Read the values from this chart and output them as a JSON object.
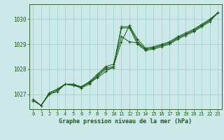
{
  "title": "Graphe pression niveau de la mer (hPa)",
  "bg_color": "#cce8e8",
  "grid_color": "#99cccc",
  "line_color": "#1a5c1a",
  "spine_color": "#336633",
  "xlim": [
    -0.5,
    23.5
  ],
  "ylim": [
    1026.4,
    1030.6
  ],
  "yticks": [
    1027,
    1028,
    1029,
    1030
  ],
  "xticks": [
    0,
    1,
    2,
    3,
    4,
    5,
    6,
    7,
    8,
    9,
    10,
    11,
    12,
    13,
    14,
    15,
    16,
    17,
    18,
    19,
    20,
    21,
    22,
    23
  ],
  "series": [
    [
      1026.8,
      1026.55,
      1027.0,
      1027.1,
      1027.4,
      1027.4,
      1027.25,
      1027.4,
      1027.7,
      1028.0,
      1028.05,
      1029.65,
      1029.65,
      1029.0,
      1028.75,
      1028.8,
      1028.9,
      1029.0,
      1029.2,
      1029.35,
      1029.5,
      1029.7,
      1029.9,
      1030.25
    ],
    [
      1026.75,
      1026.55,
      1027.0,
      1027.15,
      1027.4,
      1027.35,
      1027.3,
      1027.45,
      1027.75,
      1028.05,
      1028.1,
      1029.7,
      1029.7,
      1029.1,
      1028.8,
      1028.85,
      1028.95,
      1029.05,
      1029.25,
      1029.4,
      1029.55,
      1029.75,
      1029.95,
      1030.25
    ],
    [
      1026.75,
      1026.55,
      1027.05,
      1027.2,
      1027.4,
      1027.35,
      1027.25,
      1027.5,
      1027.65,
      1027.9,
      1028.1,
      1029.1,
      1029.75,
      1029.2,
      1028.85,
      1028.9,
      1029.0,
      1029.1,
      1029.3,
      1029.45,
      1029.6,
      1029.8,
      1030.0,
      1030.25
    ],
    [
      1026.75,
      1026.55,
      1027.05,
      1027.2,
      1027.4,
      1027.4,
      1027.3,
      1027.5,
      1027.8,
      1028.1,
      1028.2,
      1029.3,
      1029.1,
      1029.05,
      1028.8,
      1028.85,
      1028.95,
      1029.05,
      1029.25,
      1029.4,
      1029.55,
      1029.75,
      1029.95,
      1030.25
    ]
  ]
}
